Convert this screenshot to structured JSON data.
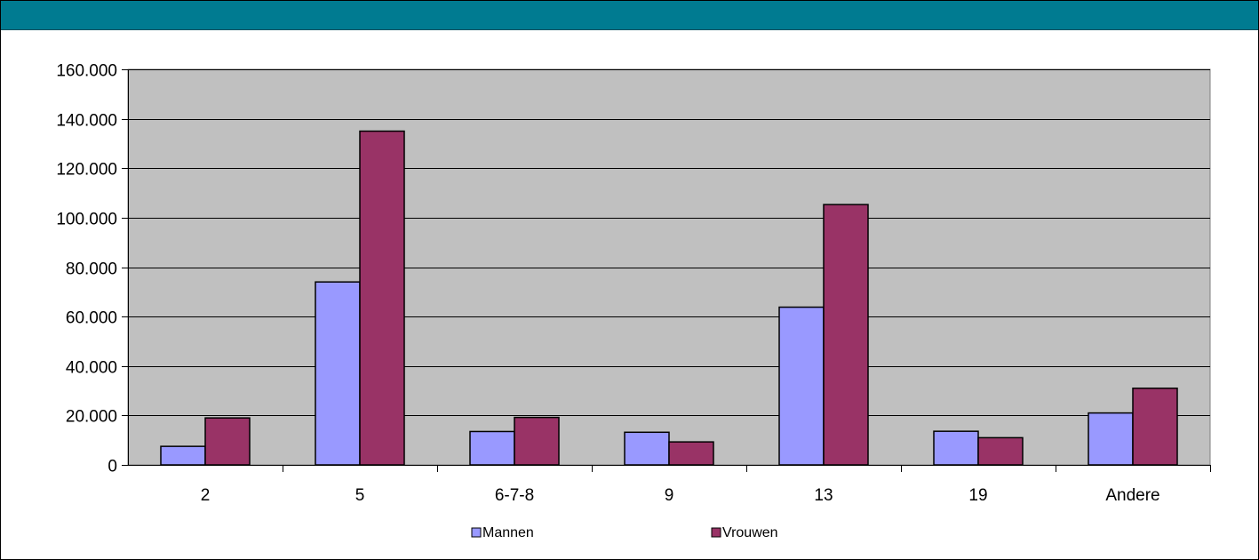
{
  "header": {
    "background_color": "#007b91"
  },
  "chart_data": {
    "type": "bar",
    "categories": [
      "2",
      "5",
      "6-7-8",
      "9",
      "13",
      "19",
      "Andere"
    ],
    "series": [
      {
        "name": "Mannen",
        "color": "#9999ff",
        "values": [
          7500,
          74000,
          13500,
          13200,
          63800,
          13600,
          21000
        ]
      },
      {
        "name": "Vrouwen",
        "color": "#993366",
        "values": [
          19000,
          135000,
          19200,
          9300,
          105300,
          11000,
          31000
        ]
      }
    ],
    "y_ticks": [
      "0",
      "20.000",
      "40.000",
      "60.000",
      "80.000",
      "100.000",
      "120.000",
      "140.000",
      "160.000"
    ],
    "ylim": [
      0,
      160000
    ],
    "y_step": 20000,
    "grid": true,
    "plot_background": "#c0c0c0",
    "legend_position": "bottom"
  }
}
